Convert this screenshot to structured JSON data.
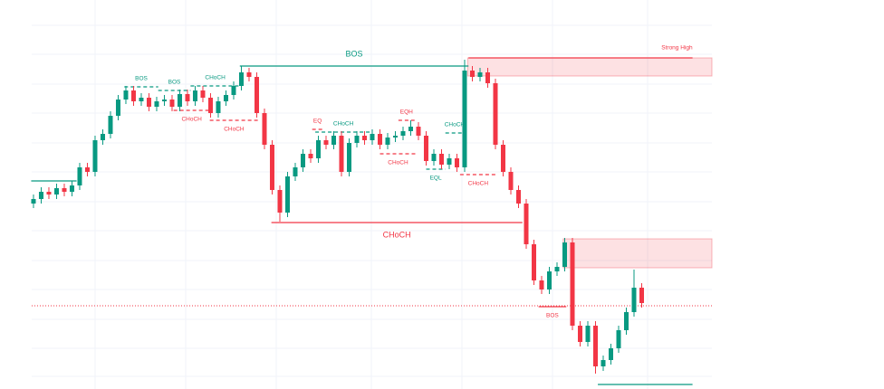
{
  "chart_data": {
    "type": "candlestick",
    "up_color": "#089981",
    "down_color": "#f23645",
    "xlim": [
      -4.35,
      110.47
    ],
    "ylim": [
      0,
      430
    ],
    "open": [
      205,
      210,
      218,
      215,
      222,
      218,
      225,
      245,
      240,
      275,
      282,
      302,
      320,
      330,
      318,
      322,
      312,
      318,
      320,
      312,
      326,
      318,
      330,
      322,
      305,
      318,
      325,
      335,
      350,
      345,
      305,
      270,
      220,
      195,
      235,
      245,
      260,
      255,
      275,
      270,
      280,
      240,
      272,
      280,
      275,
      282,
      270,
      278,
      280,
      285,
      290,
      280,
      252,
      260,
      248,
      255,
      245,
      352,
      345,
      350,
      338,
      270,
      240,
      220,
      205,
      160,
      120,
      110,
      130,
      135,
      162,
      70,
      52,
      70,
      25,
      32,
      45,
      65,
      85,
      112
    ],
    "high": [
      215,
      223,
      223,
      227,
      227,
      230,
      250,
      250,
      280,
      287,
      307,
      325,
      335,
      335,
      327,
      327,
      323,
      325,
      325,
      331,
      331,
      335,
      335,
      327,
      323,
      330,
      340,
      357,
      355,
      350,
      310,
      275,
      225,
      240,
      250,
      265,
      265,
      280,
      280,
      285,
      285,
      277,
      285,
      285,
      287,
      287,
      283,
      285,
      290,
      297,
      295,
      285,
      265,
      265,
      260,
      260,
      364,
      357,
      355,
      355,
      343,
      275,
      245,
      225,
      210,
      165,
      125,
      135,
      140,
      167,
      167,
      75,
      75,
      75,
      37,
      50,
      70,
      90,
      132,
      117
    ],
    "low": [
      200,
      205,
      210,
      210,
      213,
      213,
      220,
      235,
      235,
      270,
      277,
      297,
      315,
      313,
      313,
      307,
      307,
      313,
      307,
      307,
      313,
      313,
      317,
      300,
      300,
      313,
      320,
      330,
      340,
      300,
      265,
      215,
      185,
      190,
      230,
      240,
      250,
      250,
      265,
      265,
      235,
      235,
      267,
      270,
      270,
      265,
      265,
      273,
      275,
      280,
      275,
      247,
      247,
      243,
      243,
      240,
      240,
      340,
      340,
      333,
      265,
      235,
      215,
      200,
      155,
      115,
      105,
      105,
      125,
      130,
      65,
      47,
      47,
      17,
      20,
      27,
      40,
      60,
      80,
      90
    ],
    "close": [
      210,
      218,
      215,
      222,
      218,
      225,
      245,
      240,
      275,
      282,
      302,
      320,
      330,
      318,
      322,
      312,
      318,
      320,
      312,
      326,
      318,
      330,
      322,
      305,
      318,
      325,
      335,
      350,
      345,
      305,
      270,
      220,
      195,
      235,
      245,
      260,
      255,
      275,
      270,
      280,
      240,
      272,
      280,
      275,
      282,
      270,
      278,
      280,
      285,
      290,
      280,
      252,
      260,
      248,
      255,
      245,
      352,
      345,
      350,
      338,
      270,
      240,
      220,
      205,
      160,
      120,
      110,
      130,
      135,
      162,
      70,
      52,
      70,
      25,
      32,
      45,
      65,
      85,
      112,
      95
    ],
    "price_line": 92,
    "zones": [
      {
        "from": 56.4,
        "top": 366,
        "bottom": 346
      },
      {
        "from": 68.8,
        "top": 166,
        "bottom": 134
      }
    ],
    "structures": [
      {
        "level": 230,
        "from": -0.3,
        "to": 5.6,
        "color": "#089981",
        "dashed": false
      },
      {
        "label": "BOS",
        "level": 334,
        "from": 11.8,
        "to": 16.2,
        "color": "#089981",
        "dashed": true,
        "place": "above"
      },
      {
        "label": "BOS",
        "level": 330,
        "from": 16.2,
        "to": 20.4,
        "color": "#089981",
        "dashed": true,
        "place": "above"
      },
      {
        "label": "CHoCH",
        "level": 335,
        "from": 20.4,
        "to": 26.8,
        "color": "#089981",
        "dashed": true,
        "place": "above"
      },
      {
        "label": "CHoCH",
        "level": 308,
        "from": 18.2,
        "to": 22.9,
        "color": "#f23645",
        "dashed": true,
        "place": "below"
      },
      {
        "label": "CHoCH",
        "level": 297,
        "from": 22.9,
        "to": 29.2,
        "color": "#f23645",
        "dashed": true,
        "place": "below"
      },
      {
        "label": "BOS",
        "level": 357,
        "from": 26.8,
        "to": 56.5,
        "color": "#089981",
        "dashed": false,
        "place": "above"
      },
      {
        "label": "CHoCH",
        "level": 184,
        "from": 30.9,
        "to": 63.5,
        "color": "#f23645",
        "dashed": false,
        "place": "below"
      },
      {
        "label": "EQ",
        "level": 287,
        "from": 36.2,
        "to": 37.6,
        "color": "#f23645",
        "dashed": true,
        "place": "above"
      },
      {
        "label": "CHoCH",
        "level": 284,
        "from": 36.6,
        "to": 43.9,
        "color": "#089981",
        "dashed": true,
        "place": "above"
      },
      {
        "label": "EQH",
        "level": 297,
        "from": 47.4,
        "to": 49.5,
        "color": "#f23645",
        "dashed": true,
        "place": "above"
      },
      {
        "label": "CHoCH",
        "level": 260,
        "from": 45,
        "to": 49.7,
        "color": "#f23645",
        "dashed": true,
        "place": "below"
      },
      {
        "label": "CHoCH",
        "level": 283,
        "from": 53.5,
        "to": 55.9,
        "color": "#089981",
        "dashed": true,
        "place": "above"
      },
      {
        "label": "EQL",
        "level": 243,
        "from": 51,
        "to": 53.5,
        "color": "#089981",
        "dashed": true,
        "place": "below"
      },
      {
        "label": "CHoCH",
        "level": 237,
        "from": 55.4,
        "to": 60.1,
        "color": "#f23645",
        "dashed": true,
        "place": "below"
      },
      {
        "label": "BOS",
        "level": 91,
        "from": 65.6,
        "to": 69.2,
        "color": "#f23645",
        "dashed": false,
        "place": "below"
      },
      {
        "level": 5,
        "from": 73.3,
        "to": 85.6,
        "color": "#089981",
        "dashed": false
      },
      {
        "label": "Strong High",
        "level": 366,
        "from": 56.5,
        "to": 85.6,
        "color": "#f23645",
        "dashed": false,
        "place": "right"
      }
    ]
  }
}
